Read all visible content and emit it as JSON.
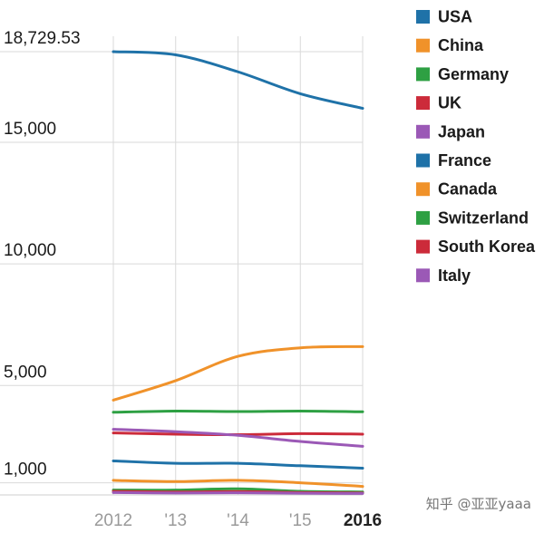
{
  "chart_data": {
    "type": "line",
    "x": [
      "2012",
      "'13",
      "'14",
      "'15",
      "2016"
    ],
    "y_ticks": [
      "18,729.53",
      "15,000",
      "10,000",
      "5,000",
      "1,000"
    ],
    "y_tick_values": [
      18729.53,
      15000,
      10000,
      5000,
      1000
    ],
    "ylim": [
      500,
      18729.53
    ],
    "grid": true,
    "legend_position": "top-right",
    "series": [
      {
        "name": "USA",
        "color": "#1f72a8",
        "values": [
          18729.53,
          18600,
          17900,
          17000,
          16400
        ]
      },
      {
        "name": "China",
        "color": "#f0922a",
        "values": [
          4400,
          5200,
          6200,
          6550,
          6600
        ]
      },
      {
        "name": "Germany",
        "color": "#2ea043",
        "values": [
          3900,
          3950,
          3930,
          3950,
          3920
        ]
      },
      {
        "name": "UK",
        "color": "#cc2b3a",
        "values": [
          3050,
          3000,
          2980,
          3020,
          3000
        ]
      },
      {
        "name": "Japan",
        "color": "#9b59b6",
        "values": [
          3200,
          3100,
          2950,
          2700,
          2500
        ]
      },
      {
        "name": "France",
        "color": "#1f72a8",
        "values": [
          1900,
          1800,
          1800,
          1700,
          1600
        ]
      },
      {
        "name": "Canada",
        "color": "#f0922a",
        "values": [
          1100,
          1050,
          1100,
          1000,
          850
        ]
      },
      {
        "name": "Switzerland",
        "color": "#2ea043",
        "values": [
          700,
          700,
          750,
          650,
          620
        ]
      },
      {
        "name": "South Korea",
        "color": "#cc2b3a",
        "values": [
          650,
          620,
          640,
          600,
          580
        ]
      },
      {
        "name": "Italy",
        "color": "#9b59b6",
        "values": [
          600,
          580,
          590,
          570,
          560
        ]
      }
    ]
  },
  "watermark": "知乎 @亚亚yaaa"
}
